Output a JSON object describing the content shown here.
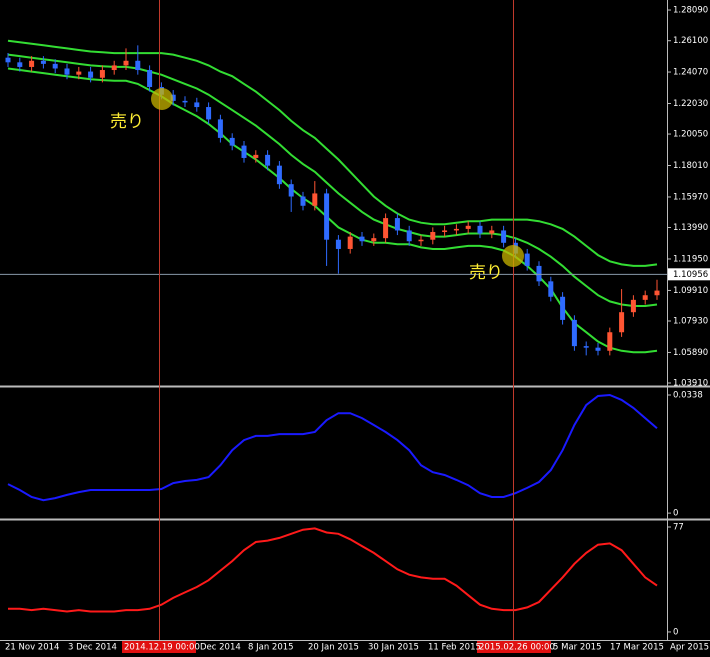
{
  "chart_data": [
    {
      "type": "candlestick",
      "open": [
        1.25,
        1.247,
        1.244,
        1.248,
        1.246,
        1.243,
        1.239,
        1.241,
        1.237,
        1.242,
        1.245,
        1.248,
        1.242,
        1.231,
        1.226,
        1.222,
        1.221,
        1.218,
        1.21,
        1.198,
        1.193,
        1.185,
        1.187,
        1.18,
        1.168,
        1.16,
        1.154,
        1.162,
        1.132,
        1.126,
        1.134,
        1.131,
        1.133,
        1.146,
        1.138,
        1.131,
        1.132,
        1.137,
        1.138,
        1.139,
        1.141,
        1.136,
        1.138,
        1.13,
        1.123,
        1.115,
        1.105,
        1.095,
        1.08,
        1.063,
        1.062,
        1.06,
        1.072,
        1.085,
        1.093,
        1.096
      ],
      "high": [
        1.253,
        1.25,
        1.251,
        1.251,
        1.249,
        1.246,
        1.244,
        1.244,
        1.245,
        1.248,
        1.256,
        1.258,
        1.245,
        1.234,
        1.229,
        1.225,
        1.224,
        1.221,
        1.213,
        1.201,
        1.196,
        1.19,
        1.19,
        1.183,
        1.171,
        1.163,
        1.17,
        1.165,
        1.135,
        1.137,
        1.137,
        1.136,
        1.149,
        1.149,
        1.141,
        1.135,
        1.14,
        1.141,
        1.142,
        1.144,
        1.144,
        1.141,
        1.141,
        1.133,
        1.126,
        1.118,
        1.108,
        1.098,
        1.083,
        1.066,
        1.065,
        1.075,
        1.1,
        1.096,
        1.099,
        1.106
      ],
      "low": [
        1.244,
        1.241,
        1.241,
        1.243,
        1.24,
        1.236,
        1.236,
        1.234,
        1.234,
        1.239,
        1.242,
        1.239,
        1.228,
        1.223,
        1.219,
        1.218,
        1.215,
        1.207,
        1.195,
        1.19,
        1.182,
        1.182,
        1.177,
        1.165,
        1.15,
        1.151,
        1.151,
        1.115,
        1.11,
        1.123,
        1.128,
        1.128,
        1.13,
        1.135,
        1.128,
        1.128,
        1.129,
        1.134,
        1.135,
        1.136,
        1.133,
        1.133,
        1.127,
        1.12,
        1.112,
        1.102,
        1.092,
        1.077,
        1.06,
        1.057,
        1.057,
        1.057,
        1.069,
        1.082,
        1.09,
        1.093
      ],
      "close": [
        1.247,
        1.244,
        1.248,
        1.246,
        1.243,
        1.239,
        1.241,
        1.237,
        1.242,
        1.245,
        1.248,
        1.242,
        1.231,
        1.226,
        1.222,
        1.221,
        1.218,
        1.21,
        1.198,
        1.193,
        1.185,
        1.187,
        1.18,
        1.168,
        1.16,
        1.154,
        1.162,
        1.132,
        1.126,
        1.134,
        1.131,
        1.133,
        1.146,
        1.138,
        1.131,
        1.132,
        1.137,
        1.138,
        1.139,
        1.141,
        1.136,
        1.138,
        1.13,
        1.123,
        1.115,
        1.105,
        1.095,
        1.08,
        1.063,
        1.062,
        1.06,
        1.072,
        1.085,
        1.093,
        1.096,
        1.099
      ],
      "up_color": "#ff5533",
      "down_color": "#2f6bff",
      "series": [
        {
          "color": "#33dd33",
          "values": [
            1.261,
            1.26,
            1.259,
            1.258,
            1.257,
            1.256,
            1.255,
            1.254,
            1.2535,
            1.253,
            1.253,
            1.253,
            1.253,
            1.253,
            1.252,
            1.25,
            1.248,
            1.245,
            1.241,
            1.238,
            1.233,
            1.228,
            1.222,
            1.216,
            1.209,
            1.203,
            1.198,
            1.191,
            1.184,
            1.176,
            1.168,
            1.16,
            1.154,
            1.149,
            1.145,
            1.143,
            1.142,
            1.142,
            1.143,
            1.144,
            1.144,
            1.145,
            1.145,
            1.145,
            1.145,
            1.144,
            1.142,
            1.139,
            1.134,
            1.128,
            1.122,
            1.118,
            1.116,
            1.115,
            1.115,
            1.116
          ]
        },
        {
          "color": "#33dd33",
          "values": [
            1.252,
            1.251,
            1.25,
            1.249,
            1.248,
            1.247,
            1.246,
            1.245,
            1.2445,
            1.244,
            1.244,
            1.243,
            1.241,
            1.239,
            1.236,
            1.233,
            1.23,
            1.226,
            1.221,
            1.216,
            1.211,
            1.206,
            1.2,
            1.194,
            1.187,
            1.181,
            1.176,
            1.169,
            1.162,
            1.156,
            1.15,
            1.145,
            1.142,
            1.139,
            1.137,
            1.135,
            1.134,
            1.134,
            1.135,
            1.136,
            1.136,
            1.136,
            1.135,
            1.133,
            1.13,
            1.126,
            1.121,
            1.115,
            1.108,
            1.102,
            1.096,
            1.092,
            1.09,
            1.089,
            1.089,
            1.09
          ]
        },
        {
          "color": "#33dd33",
          "values": [
            1.243,
            1.242,
            1.241,
            1.24,
            1.239,
            1.238,
            1.237,
            1.236,
            1.2355,
            1.235,
            1.235,
            1.233,
            1.229,
            1.225,
            1.22,
            1.216,
            1.212,
            1.207,
            1.201,
            1.194,
            1.189,
            1.184,
            1.178,
            1.172,
            1.165,
            1.159,
            1.154,
            1.147,
            1.14,
            1.136,
            1.132,
            1.13,
            1.13,
            1.129,
            1.129,
            1.127,
            1.126,
            1.126,
            1.127,
            1.128,
            1.128,
            1.127,
            1.125,
            1.121,
            1.115,
            1.108,
            1.1,
            1.088,
            1.078,
            1.072,
            1.066,
            1.062,
            1.06,
            1.059,
            1.059,
            1.06
          ]
        }
      ],
      "ylim": [
        1.0378,
        1.2874
      ],
      "yticks": [
        {
          "value": 1.2809,
          "label": "1.28090"
        },
        {
          "value": 1.261,
          "label": "1.26100"
        },
        {
          "value": 1.2407,
          "label": "1.24070"
        },
        {
          "value": 1.2203,
          "label": "1.22030"
        },
        {
          "value": 1.2005,
          "label": "1.20050"
        },
        {
          "value": 1.1801,
          "label": "1.18010"
        },
        {
          "value": 1.1597,
          "label": "1.15970"
        },
        {
          "value": 1.1399,
          "label": "1.13990"
        },
        {
          "value": 1.1195,
          "label": "1.11950"
        },
        {
          "value": 1.0991,
          "label": "1.09910"
        },
        {
          "value": 1.0793,
          "label": "1.07930"
        },
        {
          "value": 1.0589,
          "label": "1.05890"
        },
        {
          "value": 1.0391,
          "label": "1.03910"
        }
      ],
      "current_price": 1.10956
    },
    {
      "type": "line",
      "series": [
        {
          "color": "#1a1aff",
          "values": [
            0.0083,
            0.0066,
            0.0046,
            0.0037,
            0.0043,
            0.0052,
            0.006,
            0.0066,
            0.0066,
            0.0066,
            0.0066,
            0.0066,
            0.0066,
            0.0069,
            0.0086,
            0.0092,
            0.0095,
            0.0103,
            0.0137,
            0.018,
            0.0209,
            0.0221,
            0.0221,
            0.0226,
            0.0226,
            0.0226,
            0.0232,
            0.0266,
            0.0286,
            0.0286,
            0.0272,
            0.0252,
            0.0232,
            0.0209,
            0.018,
            0.0137,
            0.0117,
            0.0109,
            0.0095,
            0.008,
            0.0057,
            0.0046,
            0.0046,
            0.0057,
            0.0072,
            0.0089,
            0.0123,
            0.018,
            0.0252,
            0.0309,
            0.0335,
            0.0338,
            0.0324,
            0.0301,
            0.0272,
            0.0243
          ]
        }
      ],
      "ylim": [
        -0.0014,
        0.0358
      ],
      "yticks": [
        0,
        0.0338
      ]
    },
    {
      "type": "line",
      "series": [
        {
          "color": "#ff1a1a",
          "values": [
            17,
            17,
            16,
            17,
            16,
            15,
            16,
            15,
            15,
            15,
            16,
            16,
            17,
            20,
            25,
            29,
            33,
            38,
            45,
            52,
            60,
            66,
            67,
            69,
            72,
            75,
            76,
            73,
            72,
            68,
            63,
            58,
            52,
            46,
            42,
            40,
            39,
            39,
            34,
            27,
            20,
            17,
            16,
            16,
            18,
            22,
            31,
            40,
            50,
            58,
            64,
            65,
            60,
            50,
            40,
            34
          ]
        }
      ],
      "ylim": [
        -5.9,
        81.4
      ],
      "yticks": [
        0,
        77
      ]
    }
  ],
  "x_labels": [
    "21 Nov 2014",
    "3 Dec 2014",
    "2014.12.19 00:00",
    "Dec 2014",
    "8 Jan 2015",
    "20 Jan 2015",
    "30 Jan 2015",
    "11 Feb 2015",
    "2015.02.26 00:00",
    "5 Mar 2015",
    "17 Mar 2015",
    "Apr 2015"
  ],
  "annotations": [
    "売り",
    "売り"
  ]
}
